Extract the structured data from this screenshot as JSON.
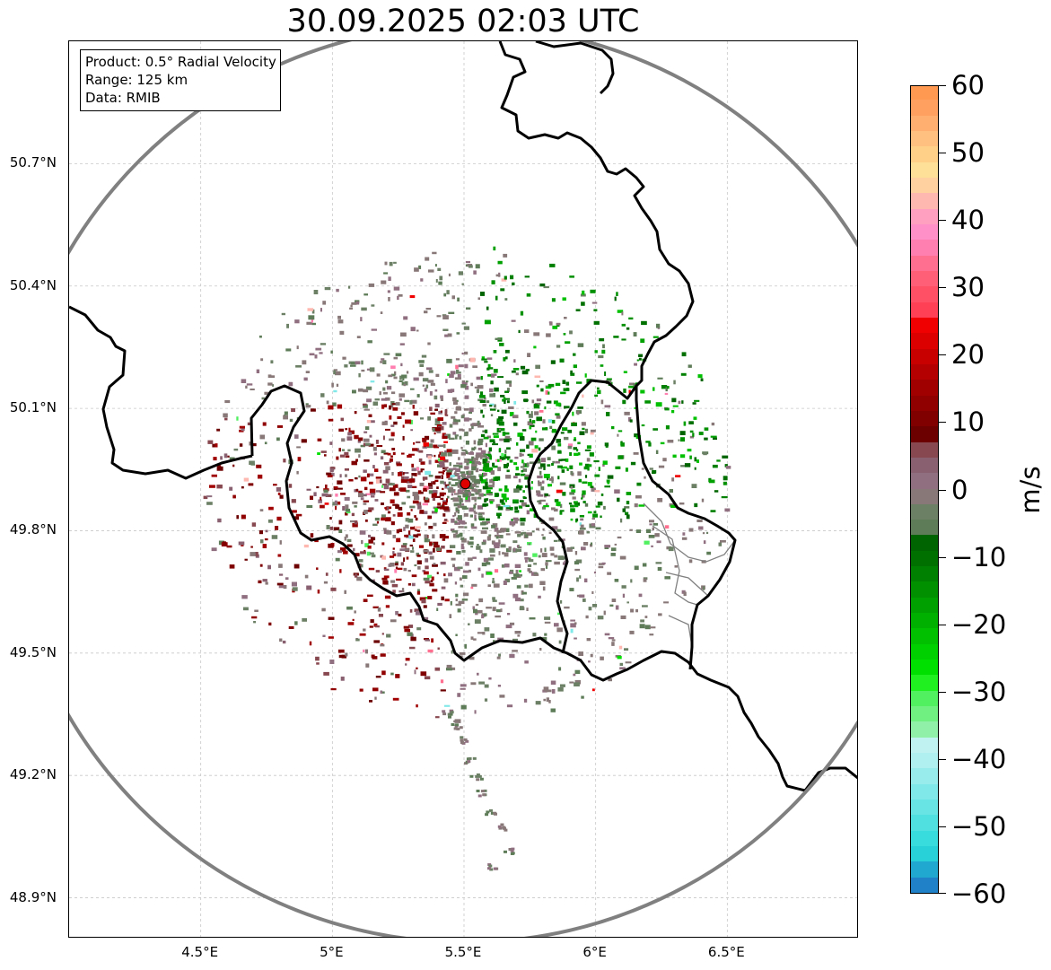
{
  "title": "30.09.2025 02:03 UTC",
  "info_box": {
    "product": "Product: 0.5° Radial Velocity",
    "range": "Range: 125 km",
    "data": "Data: RMIB"
  },
  "lat_ticks": [
    {
      "value": 50.7,
      "label": "50.7°N"
    },
    {
      "value": 50.4,
      "label": "50.4°N"
    },
    {
      "value": 50.1,
      "label": "50.1°N"
    },
    {
      "value": 49.8,
      "label": "49.8°N"
    },
    {
      "value": 49.5,
      "label": "49.5°N"
    },
    {
      "value": 49.2,
      "label": "49.2°N"
    },
    {
      "value": 48.9,
      "label": "48.9°N"
    }
  ],
  "lon_ticks": [
    {
      "value": 4.5,
      "label": "4.5°E"
    },
    {
      "value": 5.0,
      "label": "5°E"
    },
    {
      "value": 5.5,
      "label": "5.5°E"
    },
    {
      "value": 6.0,
      "label": "6°E"
    },
    {
      "value": 6.5,
      "label": "6.5°E"
    }
  ],
  "extent": {
    "lon_min": 4.0,
    "lon_max": 7.0,
    "lat_min": 48.8,
    "lat_max": 51.0
  },
  "radar": {
    "lon": 5.505,
    "lat": 49.915,
    "range_km": 125,
    "marker_color": "#e00000"
  },
  "colorbar": {
    "label": "m/s",
    "vmin": -60,
    "vmax": 60,
    "ticks": [
      "60",
      "50",
      "40",
      "30",
      "20",
      "10",
      "0",
      "−10",
      "−20",
      "−30",
      "−40",
      "−50",
      "−60"
    ],
    "colors": [
      "#2080c8",
      "#20a8d0",
      "#28d0d8",
      "#38dcdc",
      "#50e0e0",
      "#68e4e4",
      "#80e8e8",
      "#98ecec",
      "#b0f0f0",
      "#c0f2f2",
      "#90f0a8",
      "#70f080",
      "#50f060",
      "#20f020",
      "#00e000",
      "#00d000",
      "#00c000",
      "#00b000",
      "#00a000",
      "#009000",
      "#008000",
      "#007000",
      "#006400",
      "#5e7c58",
      "#6c8066",
      "#887878",
      "#907080",
      "#886070",
      "#884850",
      "#6c0000",
      "#800000",
      "#900000",
      "#a00000",
      "#b40000",
      "#c80000",
      "#dc0000",
      "#f00000",
      "#ff4055",
      "#ff5065",
      "#ff6078",
      "#ff7090",
      "#ff80b0",
      "#ff90c8",
      "#ffa0c0",
      "#ffb8b0",
      "#ffd0a0",
      "#ffe098",
      "#ffd088",
      "#ffc080",
      "#ffb070",
      "#ffa060",
      "#ff9850"
    ]
  },
  "borders": {
    "country_color": "#000000",
    "province_color": "#808080",
    "range_ring_color": "#808080"
  }
}
